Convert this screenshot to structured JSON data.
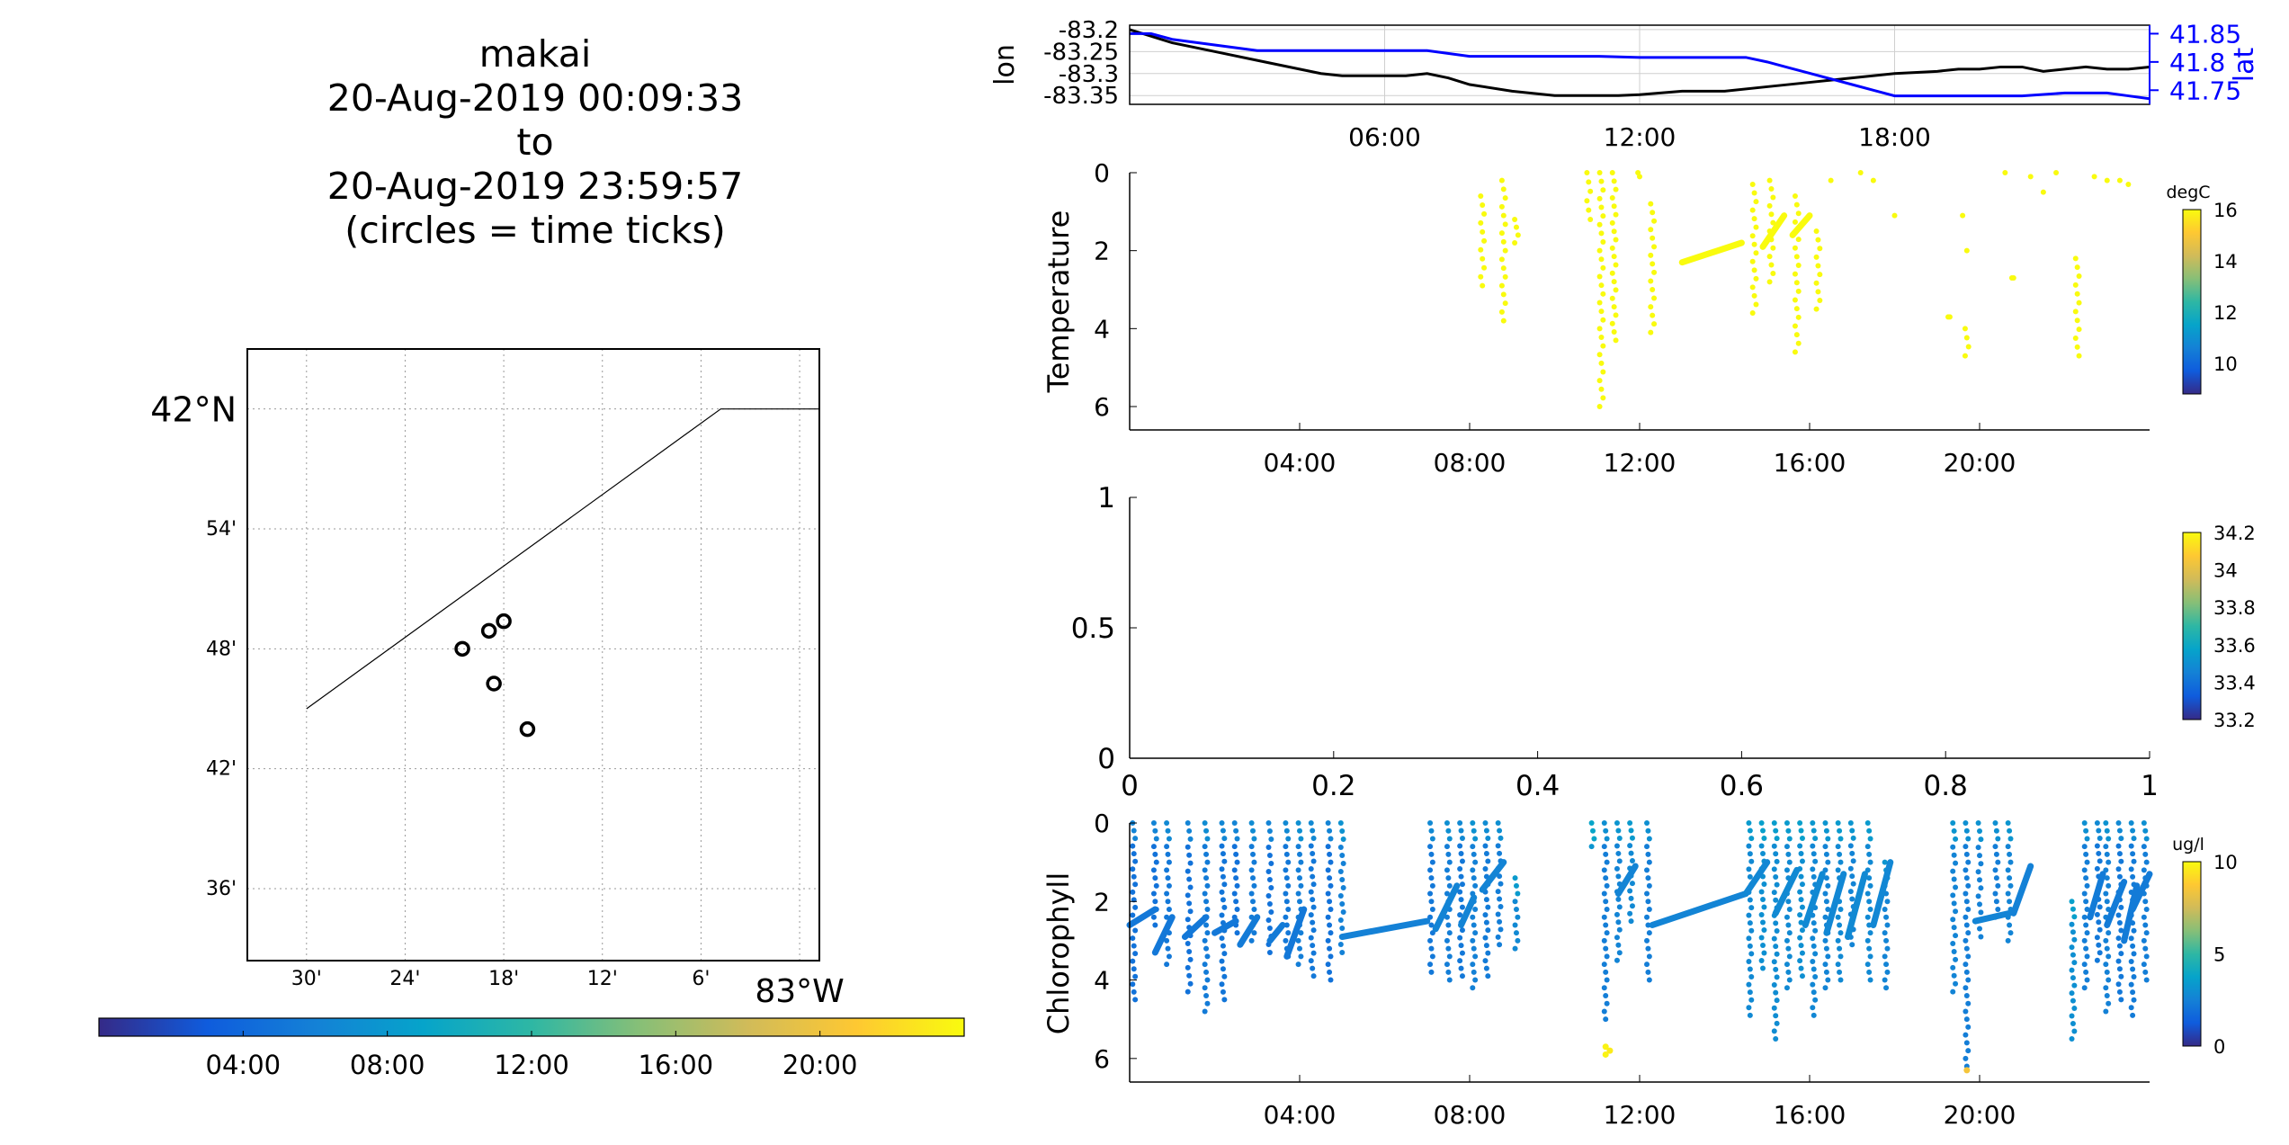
{
  "title_lines": [
    "makai",
    "20-Aug-2019 00:09:33",
    "to",
    "20-Aug-2019 23:59:57",
    "(circles = time ticks)"
  ],
  "colors": {
    "parula": [
      "#352a87",
      "#0f5cdd",
      "#1481d6",
      "#06a4ca",
      "#2eb7a4",
      "#87bf77",
      "#d1bb59",
      "#fec832",
      "#f9fb0e"
    ],
    "lon_line": "#000000",
    "lat_line": "#0000ff",
    "frame": "#000000",
    "grid": "#bdbdbd"
  },
  "chart_data": [
    {
      "id": "map",
      "type": "scatter",
      "title": "",
      "lat_ticks": [
        "42°N",
        "54'",
        "48'",
        "42'",
        "36'"
      ],
      "lat_values": [
        42.0,
        41.9,
        41.8,
        41.7,
        41.6
      ],
      "lon_ticks": [
        "30'",
        "24'",
        "18'",
        "12'",
        "6'",
        "83°W"
      ],
      "lon_values": [
        -83.5,
        -83.4,
        -83.3,
        -83.2,
        -83.1,
        -83.0
      ],
      "xlim": [
        -83.56,
        -82.98
      ],
      "ylim": [
        41.54,
        42.05
      ],
      "boundary_line": [
        [
          -83.5,
          41.75
        ],
        [
          -83.08,
          42.0
        ],
        [
          -82.98,
          42.0
        ]
      ],
      "time_tick_circles": [
        {
          "lon": -83.3,
          "lat": 41.823
        },
        {
          "lon": -83.315,
          "lat": 41.815
        },
        {
          "lon": -83.342,
          "lat": 41.8
        },
        {
          "lon": -83.31,
          "lat": 41.771
        },
        {
          "lon": -83.276,
          "lat": 41.733
        }
      ],
      "colorbar": {
        "ticks": [
          "04:00",
          "08:00",
          "12:00",
          "16:00",
          "20:00"
        ],
        "tick_hours": [
          4,
          8,
          12,
          16,
          20
        ],
        "range_hours": [
          0,
          24
        ]
      }
    },
    {
      "id": "lonlat",
      "type": "line",
      "ylabel_left": "lon",
      "ylabel_right": "lat",
      "yticks_left": [
        "-83.2",
        "-83.25",
        "-83.3",
        "-83.35"
      ],
      "yticks_left_values": [
        -83.2,
        -83.25,
        -83.3,
        -83.35
      ],
      "yticks_right": [
        "41.85",
        "41.8",
        "41.75"
      ],
      "yticks_right_values": [
        41.85,
        41.8,
        41.75
      ],
      "ylim_left": [
        -83.37,
        -83.19
      ],
      "ylim_right": [
        41.725,
        41.865
      ],
      "xticks": [
        "06:00",
        "12:00",
        "18:00"
      ],
      "xtick_hours": [
        6,
        12,
        18
      ],
      "xlim_hours": [
        0,
        24
      ],
      "grid": true,
      "series": [
        {
          "name": "lon",
          "axis": "left",
          "x": [
            0,
            0.5,
            1,
            2,
            3,
            4,
            4.5,
            5,
            6,
            6.5,
            7,
            7.5,
            8,
            9,
            10,
            10.5,
            11,
            11.5,
            12,
            13,
            14,
            15,
            16,
            17,
            18,
            19,
            19.5,
            20,
            20.5,
            21,
            21.5,
            22,
            22.5,
            23,
            23.5,
            24
          ],
          "y": [
            -83.2,
            -83.215,
            -83.23,
            -83.25,
            -83.27,
            -83.29,
            -83.3,
            -83.305,
            -83.305,
            -83.305,
            -83.3,
            -83.31,
            -83.325,
            -83.34,
            -83.35,
            -83.35,
            -83.35,
            -83.35,
            -83.348,
            -83.34,
            -83.34,
            -83.33,
            -83.32,
            -83.31,
            -83.3,
            -83.295,
            -83.29,
            -83.29,
            -83.285,
            -83.285,
            -83.295,
            -83.29,
            -83.285,
            -83.29,
            -83.29,
            -83.285
          ]
        },
        {
          "name": "lat",
          "axis": "right",
          "x": [
            0,
            0.5,
            1,
            2,
            3,
            4,
            6,
            7,
            8,
            9,
            10,
            11,
            12,
            13,
            14,
            14.5,
            15,
            15.5,
            16,
            16.5,
            17,
            17.5,
            18,
            19,
            20,
            21,
            22,
            23,
            23.5,
            24
          ],
          "y": [
            41.85,
            41.85,
            41.84,
            41.83,
            41.82,
            41.82,
            41.82,
            41.82,
            41.81,
            41.81,
            41.81,
            41.81,
            41.808,
            41.808,
            41.808,
            41.808,
            41.8,
            41.79,
            41.78,
            41.77,
            41.76,
            41.75,
            41.74,
            41.74,
            41.74,
            41.74,
            41.745,
            41.745,
            41.74,
            41.735
          ]
        }
      ]
    },
    {
      "id": "temperature",
      "type": "scatter",
      "ylabel": "Temperature",
      "yticks": [
        "0",
        "2",
        "4",
        "6"
      ],
      "ytick_values": [
        0,
        2,
        4,
        6
      ],
      "ylim": [
        0,
        6.6
      ],
      "y_reversed": true,
      "xticks": [
        "04:00",
        "08:00",
        "12:00",
        "16:00",
        "20:00"
      ],
      "xtick_hours": [
        4,
        8,
        12,
        16,
        20
      ],
      "xlim_hours": [
        0,
        24
      ],
      "point_color": "#f9fb0e",
      "colorbar": {
        "label": "degC",
        "ticks": [
          "16",
          "14",
          "12",
          "10"
        ],
        "tick_values": [
          16,
          14,
          12,
          10
        ],
        "range": [
          8.8,
          16
        ]
      },
      "profiles": [
        {
          "x": 8.3,
          "y0": 0.6,
          "y1": 2.9
        },
        {
          "x": 8.8,
          "y0": 0.2,
          "y1": 3.8
        },
        {
          "x": 9.1,
          "y0": 1.2,
          "y1": 1.8
        },
        {
          "x": 10.8,
          "y0": 0.0,
          "y1": 1.2
        },
        {
          "x": 11.1,
          "y0": 0.0,
          "y1": 6.0
        },
        {
          "x": 11.4,
          "y0": 0.0,
          "y1": 4.3
        },
        {
          "x": 12.0,
          "y0": 0.0,
          "y1": 0.1
        },
        {
          "x": 12.3,
          "y0": 0.8,
          "y1": 4.1
        },
        {
          "x": 14.7,
          "y0": 0.3,
          "y1": 3.6
        },
        {
          "x": 15.1,
          "y0": 0.2,
          "y1": 2.8
        },
        {
          "x": 15.7,
          "y0": 0.6,
          "y1": 4.6
        },
        {
          "x": 16.2,
          "y0": 1.5,
          "y1": 3.5
        },
        {
          "x": 19.3,
          "y0": 3.7,
          "y1": 3.7
        },
        {
          "x": 19.7,
          "y0": 4.0,
          "y1": 4.7
        },
        {
          "x": 20.8,
          "y0": 2.7,
          "y1": 2.7
        },
        {
          "x": 22.3,
          "y0": 2.2,
          "y1": 4.7
        }
      ],
      "scatter_points": [
        [
          16.5,
          0.2
        ],
        [
          17.2,
          0.0
        ],
        [
          17.5,
          0.2
        ],
        [
          18.0,
          1.1
        ],
        [
          19.6,
          1.1
        ],
        [
          19.7,
          2.0
        ],
        [
          20.6,
          0.0
        ],
        [
          21.2,
          0.1
        ],
        [
          21.5,
          0.5
        ],
        [
          21.8,
          0.0
        ],
        [
          22.7,
          0.1
        ],
        [
          23.0,
          0.2
        ],
        [
          23.3,
          0.2
        ],
        [
          23.5,
          0.3
        ]
      ],
      "segments": [
        {
          "x0": 13.0,
          "y0": 2.3,
          "x1": 14.4,
          "y1": 1.8
        },
        {
          "x0": 14.9,
          "y0": 1.9,
          "x1": 15.4,
          "y1": 1.1
        },
        {
          "x0": 15.6,
          "y0": 1.6,
          "x1": 16.0,
          "y1": 1.1
        }
      ]
    },
    {
      "id": "salinity",
      "type": "scatter",
      "xticks": [
        "0",
        "0.2",
        "0.4",
        "0.6",
        "0.8",
        "1"
      ],
      "xtick_values": [
        0,
        0.2,
        0.4,
        0.6,
        0.8,
        1
      ],
      "yticks": [
        "0",
        "0.5",
        "1"
      ],
      "ytick_values": [
        0,
        0.5,
        1
      ],
      "xlim": [
        0,
        1
      ],
      "ylim": [
        0,
        1
      ],
      "colorbar": {
        "ticks": [
          "34.2",
          "34",
          "33.8",
          "33.6",
          "33.4",
          "33.2"
        ],
        "tick_values": [
          34.2,
          34.0,
          33.8,
          33.6,
          33.4,
          33.2
        ],
        "range": [
          33.2,
          34.2
        ]
      }
    },
    {
      "id": "chlorophyll",
      "type": "scatter",
      "ylabel": "Chlorophyll",
      "yticks": [
        "0",
        "2",
        "4",
        "6"
      ],
      "ytick_values": [
        0,
        2,
        4,
        6
      ],
      "ylim": [
        0,
        6.6
      ],
      "y_reversed": true,
      "xticks": [
        "04:00",
        "08:00",
        "12:00",
        "16:00",
        "20:00"
      ],
      "xtick_hours": [
        4,
        8,
        12,
        16,
        20
      ],
      "xlim_hours": [
        0,
        24
      ],
      "colorbar": {
        "label": "ug/l",
        "ticks": [
          "10",
          "5",
          "0"
        ],
        "tick_values": [
          10,
          5,
          0
        ],
        "range": [
          0,
          10
        ]
      },
      "profiles": [
        {
          "x": 0.1,
          "y0": 0.0,
          "y1": 4.5,
          "c": 2.0
        },
        {
          "x": 0.6,
          "y0": 0.0,
          "y1": 2.6,
          "c": 2.0
        },
        {
          "x": 0.9,
          "y0": 0.0,
          "y1": 3.6,
          "c": 2.2
        },
        {
          "x": 1.4,
          "y0": 0.0,
          "y1": 4.3,
          "c": 2.0
        },
        {
          "x": 1.8,
          "y0": 0.0,
          "y1": 4.8,
          "c": 2.3
        },
        {
          "x": 2.2,
          "y0": 0.0,
          "y1": 4.5,
          "c": 2.1
        },
        {
          "x": 2.5,
          "y0": 0.0,
          "y1": 2.8,
          "c": 2.0
        },
        {
          "x": 2.9,
          "y0": 0.0,
          "y1": 3.0,
          "c": 2.3
        },
        {
          "x": 3.3,
          "y0": 0.0,
          "y1": 3.3,
          "c": 2.0
        },
        {
          "x": 3.7,
          "y0": 0.0,
          "y1": 3.4,
          "c": 2.2
        },
        {
          "x": 4.0,
          "y0": 0.0,
          "y1": 3.6,
          "c": 2.4
        },
        {
          "x": 4.3,
          "y0": 0.0,
          "y1": 3.9,
          "c": 2.2
        },
        {
          "x": 4.7,
          "y0": 0.0,
          "y1": 4.0,
          "c": 2.0
        },
        {
          "x": 5.0,
          "y0": 0.0,
          "y1": 3.3,
          "c": 2.5
        },
        {
          "x": 7.1,
          "y0": 0.0,
          "y1": 3.8,
          "c": 2.2
        },
        {
          "x": 7.5,
          "y0": 0.0,
          "y1": 4.0,
          "c": 2.4
        },
        {
          "x": 7.8,
          "y0": 0.0,
          "y1": 3.9,
          "c": 2.2
        },
        {
          "x": 8.1,
          "y0": 0.0,
          "y1": 4.2,
          "c": 2.5
        },
        {
          "x": 8.4,
          "y0": 0.0,
          "y1": 3.9,
          "c": 2.3
        },
        {
          "x": 8.7,
          "y0": 0.0,
          "y1": 3.1,
          "c": 2.4
        },
        {
          "x": 9.1,
          "y0": 1.4,
          "y1": 3.2,
          "c": 2.8
        },
        {
          "x": 10.9,
          "y0": 0.0,
          "y1": 0.6,
          "c": 3.2
        },
        {
          "x": 11.2,
          "y0": 0.0,
          "y1": 5.0,
          "c": 2.4
        },
        {
          "x": 11.5,
          "y0": 0.0,
          "y1": 3.5,
          "c": 2.6
        },
        {
          "x": 11.8,
          "y0": 0.0,
          "y1": 2.5,
          "c": 2.8
        },
        {
          "x": 12.2,
          "y0": 0.0,
          "y1": 4.0,
          "c": 2.4
        },
        {
          "x": 14.6,
          "y0": 0.0,
          "y1": 4.9,
          "c": 2.8
        },
        {
          "x": 14.9,
          "y0": 0.0,
          "y1": 3.7,
          "c": 3.0
        },
        {
          "x": 15.2,
          "y0": 0.0,
          "y1": 5.5,
          "c": 2.9
        },
        {
          "x": 15.5,
          "y0": 0.0,
          "y1": 4.2,
          "c": 2.8
        },
        {
          "x": 15.8,
          "y0": 0.0,
          "y1": 3.9,
          "c": 3.0
        },
        {
          "x": 16.1,
          "y0": 0.0,
          "y1": 4.9,
          "c": 2.7
        },
        {
          "x": 16.4,
          "y0": 0.0,
          "y1": 4.2,
          "c": 2.6
        },
        {
          "x": 16.7,
          "y0": 0.0,
          "y1": 4.0,
          "c": 2.8
        },
        {
          "x": 17.0,
          "y0": 0.0,
          "y1": 3.1,
          "c": 2.6
        },
        {
          "x": 17.4,
          "y0": 0.0,
          "y1": 4.0,
          "c": 2.8
        },
        {
          "x": 17.8,
          "y0": 1.0,
          "y1": 4.2,
          "c": 2.6
        },
        {
          "x": 19.4,
          "y0": 0.0,
          "y1": 4.3,
          "c": 2.6
        },
        {
          "x": 19.7,
          "y0": 0.0,
          "y1": 6.2,
          "c": 2.4
        },
        {
          "x": 20.0,
          "y0": 0.0,
          "y1": 2.9,
          "c": 2.5
        },
        {
          "x": 20.4,
          "y0": 0.0,
          "y1": 2.4,
          "c": 2.4
        },
        {
          "x": 20.7,
          "y0": 0.0,
          "y1": 3.0,
          "c": 2.6
        },
        {
          "x": 22.2,
          "y0": 2.0,
          "y1": 5.5,
          "c": 3.0
        },
        {
          "x": 22.5,
          "y0": 0.0,
          "y1": 4.2,
          "c": 2.4
        },
        {
          "x": 22.8,
          "y0": 0.0,
          "y1": 3.5,
          "c": 2.2
        },
        {
          "x": 23.0,
          "y0": 0.0,
          "y1": 4.8,
          "c": 2.5
        },
        {
          "x": 23.3,
          "y0": 0.0,
          "y1": 4.5,
          "c": 2.2
        },
        {
          "x": 23.6,
          "y0": 0.0,
          "y1": 4.9,
          "c": 2.3
        },
        {
          "x": 23.9,
          "y0": 0.0,
          "y1": 4.0,
          "c": 2.4
        }
      ],
      "segments": [
        {
          "x0": 0.0,
          "y0": 2.6,
          "x1": 0.6,
          "y1": 2.2,
          "c": 2.2
        },
        {
          "x0": 0.6,
          "y0": 3.3,
          "x1": 1.0,
          "y1": 2.4,
          "c": 2.2
        },
        {
          "x0": 1.3,
          "y0": 2.9,
          "x1": 1.8,
          "y1": 2.4,
          "c": 2.2
        },
        {
          "x0": 2.0,
          "y0": 2.8,
          "x1": 2.5,
          "y1": 2.5,
          "c": 2.2
        },
        {
          "x0": 2.6,
          "y0": 3.1,
          "x1": 3.0,
          "y1": 2.4,
          "c": 2.3
        },
        {
          "x0": 3.3,
          "y0": 3.0,
          "x1": 3.6,
          "y1": 2.6,
          "c": 2.3
        },
        {
          "x0": 3.7,
          "y0": 3.4,
          "x1": 4.1,
          "y1": 2.2,
          "c": 2.2
        },
        {
          "x0": 5.0,
          "y0": 2.9,
          "x1": 7.0,
          "y1": 2.5,
          "c": 2.5
        },
        {
          "x0": 7.2,
          "y0": 2.7,
          "x1": 7.7,
          "y1": 1.6,
          "c": 2.6
        },
        {
          "x0": 7.8,
          "y0": 2.6,
          "x1": 8.1,
          "y1": 1.9,
          "c": 2.6
        },
        {
          "x0": 8.3,
          "y0": 1.7,
          "x1": 8.8,
          "y1": 1.0,
          "c": 2.6
        },
        {
          "x0": 11.5,
          "y0": 1.8,
          "x1": 11.9,
          "y1": 1.1,
          "c": 2.6
        },
        {
          "x0": 12.3,
          "y0": 2.6,
          "x1": 14.5,
          "y1": 1.8,
          "c": 2.6
        },
        {
          "x0": 14.5,
          "y0": 1.8,
          "x1": 15.0,
          "y1": 1.0,
          "c": 2.7
        },
        {
          "x0": 15.2,
          "y0": 2.3,
          "x1": 15.7,
          "y1": 1.2,
          "c": 2.8
        },
        {
          "x0": 15.9,
          "y0": 2.6,
          "x1": 16.3,
          "y1": 1.3,
          "c": 2.8
        },
        {
          "x0": 16.4,
          "y0": 2.8,
          "x1": 16.8,
          "y1": 1.3,
          "c": 2.7
        },
        {
          "x0": 16.9,
          "y0": 2.9,
          "x1": 17.3,
          "y1": 1.3,
          "c": 2.8
        },
        {
          "x0": 17.5,
          "y0": 2.6,
          "x1": 17.9,
          "y1": 1.0,
          "c": 2.7
        },
        {
          "x0": 19.9,
          "y0": 2.5,
          "x1": 20.7,
          "y1": 2.3,
          "c": 2.6
        },
        {
          "x0": 20.8,
          "y0": 2.3,
          "x1": 21.2,
          "y1": 1.1,
          "c": 2.5
        },
        {
          "x0": 22.6,
          "y0": 2.4,
          "x1": 22.9,
          "y1": 1.3,
          "c": 2.3
        },
        {
          "x0": 23.0,
          "y0": 2.6,
          "x1": 23.4,
          "y1": 1.5,
          "c": 2.3
        },
        {
          "x0": 23.4,
          "y0": 3.0,
          "x1": 23.7,
          "y1": 1.6,
          "c": 2.3
        },
        {
          "x0": 23.6,
          "y0": 2.2,
          "x1": 24.0,
          "y1": 1.3,
          "c": 2.3
        }
      ],
      "highlight_points": [
        [
          11.2,
          5.7,
          9.8
        ],
        [
          11.2,
          5.9,
          9.8
        ],
        [
          11.3,
          5.8,
          9.6
        ],
        [
          19.7,
          6.3,
          8.5
        ]
      ]
    }
  ]
}
